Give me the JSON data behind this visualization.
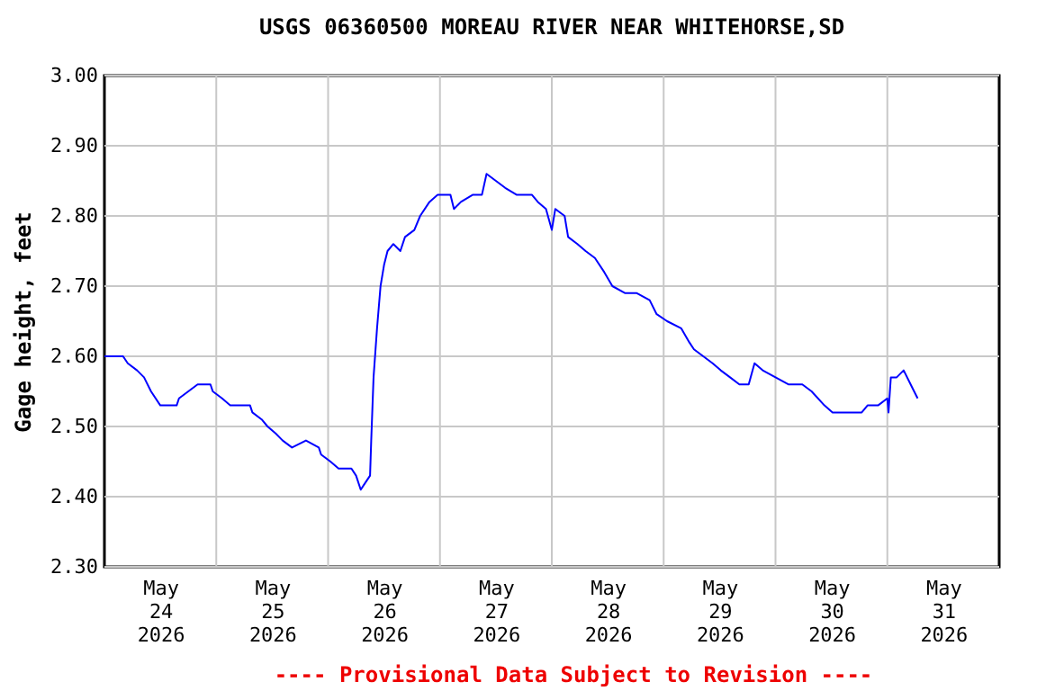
{
  "chart_data": {
    "type": "line",
    "title": "USGS 06360500 MOREAU RIVER NEAR WHITEHORSE,SD",
    "ylabel": "Gage height, feet",
    "annotations": [
      "---- Provisional Data Subject to Revision ----"
    ],
    "series": [
      {
        "color": "#0000ff",
        "x": [
          "2026-05-24T00:00",
          "2026-05-24T01:00",
          "2026-05-24T04:00",
          "2026-05-24T05:00",
          "2026-05-24T07:00",
          "2026-05-24T08:30",
          "2026-05-24T10:00",
          "2026-05-24T12:00",
          "2026-05-24T15:30",
          "2026-05-24T16:00",
          "2026-05-24T18:00",
          "2026-05-24T20:00",
          "2026-05-24T22:45",
          "2026-05-24T23:15",
          "2026-05-25T01:15",
          "2026-05-25T03:00",
          "2026-05-25T07:15",
          "2026-05-25T07:45",
          "2026-05-25T09:45",
          "2026-05-25T11:00",
          "2026-05-25T12:45",
          "2026-05-25T14:15",
          "2026-05-25T16:15",
          "2026-05-25T19:15",
          "2026-05-25T22:00",
          "2026-05-25T22:30",
          "2026-05-26T00:30",
          "2026-05-26T02:15",
          "2026-05-26T05:00",
          "2026-05-26T06:00",
          "2026-05-26T07:00",
          "2026-05-26T08:00",
          "2026-05-26T09:00",
          "2026-05-26T09:15",
          "2026-05-26T09:45",
          "2026-05-26T10:30",
          "2026-05-26T11:15",
          "2026-05-26T12:00",
          "2026-05-26T12:45",
          "2026-05-26T14:00",
          "2026-05-26T15:30",
          "2026-05-26T16:30",
          "2026-05-26T18:30",
          "2026-05-26T19:45",
          "2026-05-26T21:45",
          "2026-05-26T23:30",
          "2026-05-27T02:15",
          "2026-05-27T03:00",
          "2026-05-27T04:30",
          "2026-05-27T07:00",
          "2026-05-27T09:00",
          "2026-05-27T10:00",
          "2026-05-27T12:00",
          "2026-05-27T14:00",
          "2026-05-27T16:30",
          "2026-05-27T19:45",
          "2026-05-27T21:00",
          "2026-05-27T22:45",
          "2026-05-28T00:00",
          "2026-05-28T00:45",
          "2026-05-28T02:45",
          "2026-05-28T03:30",
          "2026-05-28T05:30",
          "2026-05-28T07:15",
          "2026-05-28T09:15",
          "2026-05-28T11:15",
          "2026-05-28T13:00",
          "2026-05-28T15:45",
          "2026-05-28T18:15",
          "2026-05-28T21:00",
          "2026-05-28T22:30",
          "2026-05-29T00:45",
          "2026-05-29T03:45",
          "2026-05-29T05:30",
          "2026-05-29T06:30",
          "2026-05-29T08:30",
          "2026-05-29T10:30",
          "2026-05-29T12:15",
          "2026-05-29T14:15",
          "2026-05-29T16:15",
          "2026-05-29T18:15",
          "2026-05-29T19:30",
          "2026-05-29T21:15",
          "2026-05-30T00:00",
          "2026-05-30T02:45",
          "2026-05-30T05:45",
          "2026-05-30T07:45",
          "2026-05-30T10:30",
          "2026-05-30T12:15",
          "2026-05-30T18:30",
          "2026-05-30T19:45",
          "2026-05-30T22:00",
          "2026-05-31T00:00",
          "2026-05-31T00:15",
          "2026-05-31T00:45",
          "2026-05-31T02:00",
          "2026-05-31T03:30",
          "2026-05-31T05:00",
          "2026-05-31T06:30"
        ],
        "values": [
          2.6,
          2.6,
          2.6,
          2.59,
          2.58,
          2.57,
          2.55,
          2.53,
          2.53,
          2.54,
          2.55,
          2.56,
          2.56,
          2.55,
          2.54,
          2.53,
          2.53,
          2.52,
          2.51,
          2.5,
          2.49,
          2.48,
          2.47,
          2.48,
          2.47,
          2.46,
          2.45,
          2.44,
          2.44,
          2.43,
          2.41,
          2.42,
          2.43,
          2.48,
          2.57,
          2.64,
          2.7,
          2.73,
          2.75,
          2.76,
          2.75,
          2.77,
          2.78,
          2.8,
          2.82,
          2.83,
          2.83,
          2.81,
          2.82,
          2.83,
          2.83,
          2.86,
          2.85,
          2.84,
          2.83,
          2.83,
          2.82,
          2.81,
          2.78,
          2.81,
          2.8,
          2.77,
          2.76,
          2.75,
          2.74,
          2.72,
          2.7,
          2.69,
          2.69,
          2.68,
          2.66,
          2.65,
          2.64,
          2.62,
          2.61,
          2.6,
          2.59,
          2.58,
          2.57,
          2.56,
          2.56,
          2.59,
          2.58,
          2.57,
          2.56,
          2.56,
          2.55,
          2.53,
          2.52,
          2.52,
          2.53,
          2.53,
          2.54,
          2.52,
          2.57,
          2.57,
          2.58,
          2.56,
          2.54
        ]
      }
    ],
    "xlim": [
      "2026-05-24T00:00",
      "2026-06-01T00:00"
    ],
    "xticks": [
      {
        "value": "2026-05-24T12:00",
        "label": "May\n24\n2026"
      },
      {
        "value": "2026-05-25T12:00",
        "label": "May\n25\n2026"
      },
      {
        "value": "2026-05-26T12:00",
        "label": "May\n26\n2026"
      },
      {
        "value": "2026-05-27T12:00",
        "label": "May\n27\n2026"
      },
      {
        "value": "2026-05-28T12:00",
        "label": "May\n28\n2026"
      },
      {
        "value": "2026-05-29T12:00",
        "label": "May\n29\n2026"
      },
      {
        "value": "2026-05-30T12:00",
        "label": "May\n30\n2026"
      },
      {
        "value": "2026-05-31T12:00",
        "label": "May\n31\n2026"
      },
      {
        "value": "2026-05-25T00:00",
        "label": null
      },
      {
        "value": "2026-05-26T00:00",
        "label": null
      },
      {
        "value": "2026-05-27T00:00",
        "label": null
      },
      {
        "value": "2026-05-28T00:00",
        "label": null
      },
      {
        "value": "2026-05-29T00:00",
        "label": null
      },
      {
        "value": "2026-05-30T00:00",
        "label": null
      },
      {
        "value": "2026-05-31T00:00",
        "label": null
      }
    ],
    "ylim": [
      2.3,
      3.0
    ],
    "yticks": [
      {
        "value": 2.3,
        "label": "2.30"
      },
      {
        "value": 2.4,
        "label": "2.40"
      },
      {
        "value": 2.5,
        "label": "2.50"
      },
      {
        "value": 2.6,
        "label": "2.60"
      },
      {
        "value": 2.7,
        "label": "2.70"
      },
      {
        "value": 2.8,
        "label": "2.80"
      },
      {
        "value": 2.9,
        "label": "2.90"
      },
      {
        "value": 3.0,
        "label": "3.00"
      }
    ],
    "grid": true,
    "marker": "none",
    "line_style": "solid"
  }
}
